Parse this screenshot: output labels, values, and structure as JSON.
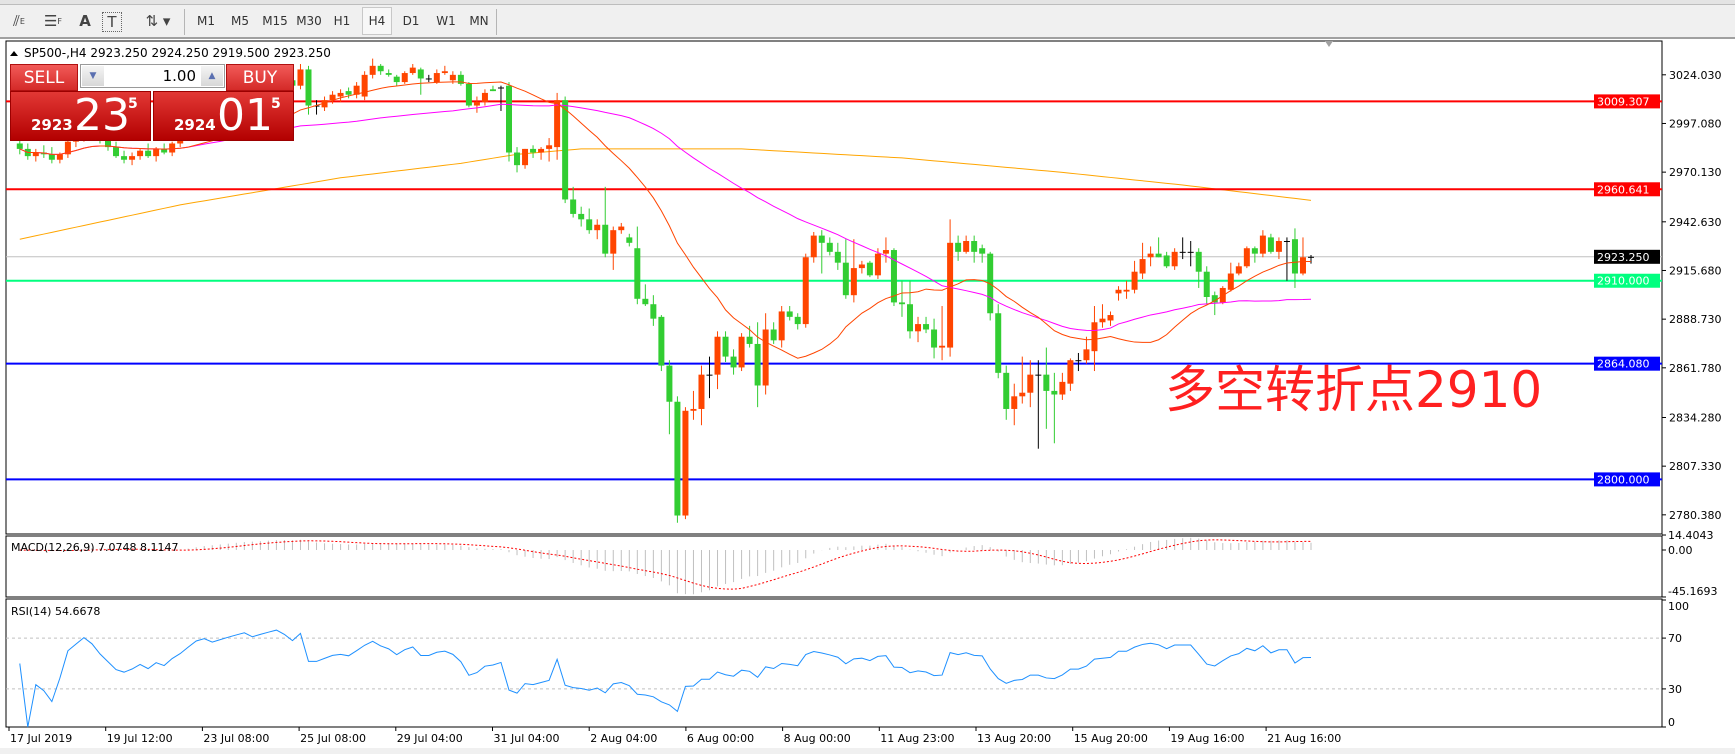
{
  "toolbar": {
    "tools": [
      {
        "icon": "elliott-wave-icon"
      },
      {
        "icon": "fibonacci-icon"
      },
      {
        "icon": "text-icon",
        "label": "A"
      },
      {
        "icon": "text-label-icon",
        "label": "T"
      },
      {
        "icon": "arrows-icon"
      }
    ],
    "timeframes": [
      "M1",
      "M5",
      "M15",
      "M30",
      "H1",
      "H4",
      "D1",
      "W1",
      "MN"
    ],
    "active_timeframe": "H4"
  },
  "chart": {
    "header": "SP500-,H4  2923.250 2924.250 2919.500 2923.250",
    "annotation": "多空转折点2910",
    "colors": {
      "bull": "#ff4500",
      "bear": "#32cd32",
      "doji": "#000000",
      "ma_fast": "#ff4500",
      "ma_mid": "#ff00ff",
      "ma_slow": "#ffa500",
      "macd_hist": "#c0c0c0",
      "macd_signal": "#ff0000",
      "rsi": "#1e90ff"
    }
  },
  "trade_panel": {
    "sell_label": "SELL",
    "buy_label": "BUY",
    "lot": "1.00",
    "sell_price": {
      "prefix": "2923",
      "big": "23",
      "sup": "5"
    },
    "buy_price": {
      "prefix": "2924",
      "big": "01",
      "sup": "5"
    }
  },
  "price_axis": {
    "ticks": [
      "3024.030",
      "2997.080",
      "2970.130",
      "2942.630",
      "2915.680",
      "2888.730",
      "2861.780",
      "2834.280",
      "2807.330",
      "2780.380"
    ],
    "levels": [
      {
        "value": "3009.307",
        "color": "#ff0000",
        "text_color": "#ffffff"
      },
      {
        "value": "2960.641",
        "color": "#ff0000",
        "text_color": "#ffffff"
      },
      {
        "value": "2923.250",
        "color": "#000000",
        "text_color": "#ffffff",
        "line_color": "#c0c0c0"
      },
      {
        "value": "2910.000",
        "color": "#00ff7f",
        "text_color": "#ffffff"
      },
      {
        "value": "2864.080",
        "color": "#0000ff",
        "text_color": "#ffffff"
      },
      {
        "value": "2800.000",
        "color": "#0000ff",
        "text_color": "#ffffff"
      }
    ]
  },
  "time_axis": [
    "17 Jul 2019",
    "19 Jul 12:00",
    "23 Jul 08:00",
    "25 Jul 08:00",
    "29 Jul 04:00",
    "31 Jul 04:00",
    "2 Aug 04:00",
    "6 Aug 00:00",
    "8 Aug 00:00",
    "11 Aug 23:00",
    "13 Aug 20:00",
    "15 Aug 20:00",
    "19 Aug 16:00",
    "21 Aug 16:00"
  ],
  "macd": {
    "label": "MACD(12,26,9) 7.0748 8.1147",
    "scale": [
      "14.4043",
      "0.00",
      "-45.1693"
    ]
  },
  "rsi": {
    "label": "RSI(14) 54.6678",
    "scale": [
      "100",
      "70",
      "30",
      "0"
    ],
    "levels": [
      70,
      30
    ]
  },
  "chart_data": {
    "type": "candlestick",
    "symbol": "SP500-",
    "timeframe": "H4",
    "ylim": [
      2780.38,
      3024.03
    ],
    "ma_slow_samples": [
      [
        0,
        2933
      ],
      [
        20,
        2952
      ],
      [
        40,
        2967
      ],
      [
        55,
        2975
      ],
      [
        62,
        2980
      ],
      [
        70,
        2983
      ],
      [
        90,
        2983
      ],
      [
        110,
        2978
      ],
      [
        130,
        2970
      ],
      [
        145,
        2963
      ],
      [
        162,
        2954
      ]
    ],
    "ohlc": [
      [
        2986,
        2990,
        2980,
        2983
      ],
      [
        2983,
        2986,
        2977,
        2979
      ],
      [
        2979,
        2983,
        2976,
        2981
      ],
      [
        2981,
        2985,
        2978,
        2980
      ],
      [
        2980,
        2984,
        2975,
        2977
      ],
      [
        2977,
        2981,
        2975,
        2980
      ],
      [
        2980,
        2988,
        2978,
        2987
      ],
      [
        2987,
        2993,
        2984,
        2990
      ],
      [
        2990,
        2996,
        2987,
        2994
      ],
      [
        2994,
        2998,
        2990,
        2992
      ],
      [
        2992,
        2995,
        2986,
        2988
      ],
      [
        2988,
        2991,
        2982,
        2984
      ],
      [
        2984,
        2987,
        2978,
        2979
      ],
      [
        2979,
        2982,
        2975,
        2977
      ],
      [
        2977,
        2981,
        2974,
        2979
      ],
      [
        2979,
        2983,
        2977,
        2982
      ],
      [
        2982,
        2986,
        2978,
        2979
      ],
      [
        2979,
        2984,
        2976,
        2983
      ],
      [
        2983,
        2986,
        2980,
        2981
      ],
      [
        2981,
        2987,
        2979,
        2986
      ],
      [
        2986,
        2992,
        2984,
        2990
      ],
      [
        2990,
        2998,
        2988,
        2996
      ],
      [
        2996,
        3005,
        2994,
        3003
      ],
      [
        3003,
        3008,
        3000,
        3006
      ],
      [
        3006,
        3010,
        3002,
        3004
      ],
      [
        3004,
        3008,
        3000,
        3007
      ],
      [
        3007,
        3012,
        3004,
        3010
      ],
      [
        3010,
        3015,
        3007,
        3013
      ],
      [
        3013,
        3018,
        3010,
        3016
      ],
      [
        3016,
        3020,
        3012,
        3014
      ],
      [
        3014,
        3018,
        3010,
        3017
      ],
      [
        3017,
        3022,
        3014,
        3020
      ],
      [
        3020,
        3025,
        3017,
        3023
      ],
      [
        3023,
        3027,
        3019,
        3021
      ],
      [
        3021,
        3025,
        3016,
        3018
      ],
      [
        3018,
        3030,
        3016,
        3027
      ],
      [
        3027,
        3029,
        3002,
        3007
      ],
      [
        3007,
        3010,
        3002,
        3007
      ],
      [
        3006,
        3012,
        3004,
        3010
      ],
      [
        3010,
        3015,
        3008,
        3013
      ],
      [
        3012,
        3016,
        3009,
        3014
      ],
      [
        3015,
        3017,
        3011,
        3013
      ],
      [
        3013,
        3020,
        3011,
        3018
      ],
      [
        3012,
        3026,
        3010,
        3024
      ],
      [
        3024,
        3033,
        3022,
        3029
      ],
      [
        3029,
        3030,
        3024,
        3026
      ],
      [
        3025,
        3027,
        3023,
        3024
      ],
      [
        3023,
        3024,
        3018,
        3020
      ],
      [
        3020,
        3026,
        3019,
        3025
      ],
      [
        3025,
        3030,
        3024,
        3028
      ],
      [
        3027,
        3028,
        3013,
        3022
      ],
      [
        3022,
        3024,
        3020,
        3022
      ],
      [
        3020,
        3027,
        3019,
        3025
      ],
      [
        3025,
        3029,
        3024,
        3026
      ],
      [
        3021,
        3026,
        3019,
        3024
      ],
      [
        3024,
        3026,
        3018,
        3019
      ],
      [
        3019,
        3020,
        3006,
        3007
      ],
      [
        3007,
        3012,
        3003,
        3009
      ],
      [
        3009,
        3016,
        3007,
        3014
      ],
      [
        3016,
        3018,
        3015,
        3015
      ],
      [
        3017,
        3018,
        3004,
        3017
      ],
      [
        3018,
        3020,
        2976,
        2981
      ],
      [
        2981,
        2984,
        2970,
        2974
      ],
      [
        2974,
        2983,
        2972,
        2983
      ],
      [
        2983,
        2985,
        2978,
        2981
      ],
      [
        2981,
        2984,
        2977,
        2983
      ],
      [
        2983,
        2989,
        2976,
        2985
      ],
      [
        2984,
        3014,
        2977,
        3010
      ],
      [
        3010,
        3012,
        2953,
        2955
      ],
      [
        2955,
        2962,
        2945,
        2947
      ],
      [
        2947,
        2951,
        2940,
        2944
      ],
      [
        2944,
        2950,
        2936,
        2938
      ],
      [
        2938,
        2944,
        2933,
        2941
      ],
      [
        2941,
        2962,
        2923,
        2925
      ],
      [
        2925,
        2940,
        2916,
        2938
      ],
      [
        2938,
        2942,
        2936,
        2940
      ],
      [
        2934,
        2936,
        2929,
        2931
      ],
      [
        2928,
        2940,
        2897,
        2900
      ],
      [
        2900,
        2908,
        2896,
        2897
      ],
      [
        2897,
        2902,
        2885,
        2889
      ],
      [
        2890,
        2891,
        2860,
        2863
      ],
      [
        2863,
        2866,
        2825,
        2843
      ],
      [
        2843,
        2846,
        2776,
        2780
      ],
      [
        2780,
        2840,
        2778,
        2838
      ],
      [
        2838,
        2849,
        2833,
        2839
      ],
      [
        2839,
        2863,
        2830,
        2858
      ],
      [
        2858,
        2868,
        2845,
        2858
      ],
      [
        2858,
        2882,
        2850,
        2879
      ],
      [
        2879,
        2882,
        2865,
        2868
      ],
      [
        2868,
        2872,
        2858,
        2862
      ],
      [
        2862,
        2881,
        2860,
        2879
      ],
      [
        2879,
        2885,
        2873,
        2875
      ],
      [
        2875,
        2887,
        2840,
        2852
      ],
      [
        2852,
        2892,
        2847,
        2883
      ],
      [
        2883,
        2887,
        2875,
        2877
      ],
      [
        2877,
        2896,
        2873,
        2893
      ],
      [
        2893,
        2896,
        2888,
        2890
      ],
      [
        2890,
        2892,
        2883,
        2886
      ],
      [
        2886,
        2925,
        2884,
        2923
      ],
      [
        2923,
        2937,
        2920,
        2935
      ],
      [
        2935,
        2938,
        2914,
        2931
      ],
      [
        2931,
        2934,
        2924,
        2926
      ],
      [
        2926,
        2931,
        2916,
        2920
      ],
      [
        2920,
        2933,
        2900,
        2902
      ],
      [
        2902,
        2933,
        2898,
        2917
      ],
      [
        2917,
        2921,
        2914,
        2919
      ],
      [
        2920,
        2921,
        2912,
        2913
      ],
      [
        2913,
        2928,
        2911,
        2925
      ],
      [
        2925,
        2934,
        2920,
        2927
      ],
      [
        2927,
        2928,
        2896,
        2898
      ],
      [
        2898,
        2910,
        2890,
        2897
      ],
      [
        2897,
        2910,
        2878,
        2882
      ],
      [
        2882,
        2890,
        2876,
        2886
      ],
      [
        2886,
        2890,
        2881,
        2883
      ],
      [
        2883,
        2889,
        2867,
        2873
      ],
      [
        2873,
        2896,
        2866,
        2874
      ],
      [
        2873,
        2944,
        2868,
        2931
      ],
      [
        2931,
        2935,
        2921,
        2926
      ],
      [
        2926,
        2935,
        2925,
        2932
      ],
      [
        2932,
        2935,
        2920,
        2926
      ],
      [
        2928,
        2930,
        2920,
        2925
      ],
      [
        2925,
        2926,
        2888,
        2892
      ],
      [
        2892,
        2897,
        2856,
        2859
      ],
      [
        2859,
        2863,
        2833,
        2839
      ],
      [
        2839,
        2853,
        2830,
        2846
      ],
      [
        2846,
        2868,
        2842,
        2848
      ],
      [
        2848,
        2866,
        2840,
        2858
      ],
      [
        2858,
        2866,
        2817,
        2858
      ],
      [
        2858,
        2873,
        2828,
        2849
      ],
      [
        2849,
        2859,
        2820,
        2847
      ],
      [
        2847,
        2859,
        2844,
        2854
      ],
      [
        2853,
        2867,
        2849,
        2866
      ],
      [
        2866,
        2870,
        2860,
        2866
      ],
      [
        2866,
        2879,
        2864,
        2872
      ],
      [
        2871,
        2896,
        2860,
        2887
      ],
      [
        2887,
        2897,
        2884,
        2889
      ],
      [
        2888,
        2893,
        2885,
        2891
      ],
      [
        2903,
        2907,
        2899,
        2905
      ],
      [
        2904,
        2910,
        2900,
        2905
      ],
      [
        2905,
        2921,
        2903,
        2915
      ],
      [
        2914,
        2931,
        2911,
        2922
      ],
      [
        2923,
        2929,
        2918,
        2925
      ],
      [
        2925,
        2934,
        2923,
        2923
      ],
      [
        2924,
        2926,
        2917,
        2918
      ],
      [
        2918,
        2928,
        2916,
        2926
      ],
      [
        2926,
        2934,
        2922,
        2926
      ],
      [
        2926,
        2932,
        2918,
        2926
      ],
      [
        2926,
        2928,
        2906,
        2915
      ],
      [
        2915,
        2918,
        2897,
        2901
      ],
      [
        2902,
        2904,
        2891,
        2898
      ],
      [
        2898,
        2907,
        2897,
        2906
      ],
      [
        2905,
        2920,
        2904,
        2914
      ],
      [
        2914,
        2920,
        2913,
        2918
      ],
      [
        2918,
        2929,
        2917,
        2928
      ],
      [
        2928,
        2929,
        2920,
        2925
      ],
      [
        2925,
        2938,
        2923,
        2935
      ],
      [
        2934,
        2936,
        2925,
        2926
      ],
      [
        2926,
        2934,
        2922,
        2932
      ],
      [
        2932,
        2934,
        2910,
        2932
      ],
      [
        2933,
        2939,
        2906,
        2914
      ],
      [
        2914,
        2934,
        2913,
        2923
      ],
      [
        2923.25,
        2924.25,
        2919.5,
        2923.25
      ]
    ]
  }
}
